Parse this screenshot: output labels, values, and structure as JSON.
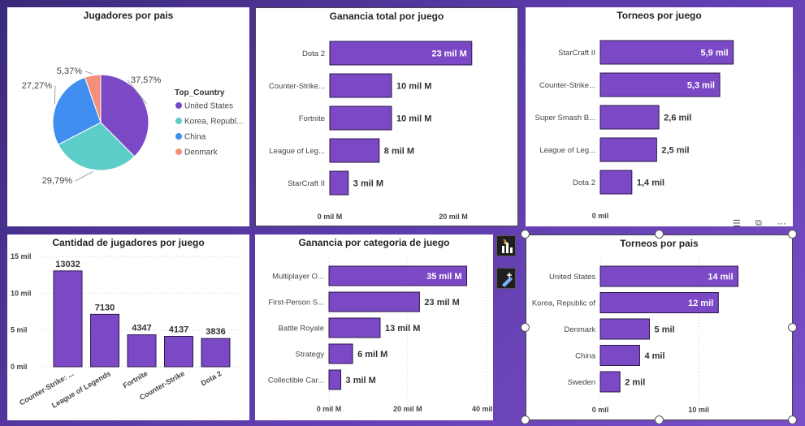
{
  "colors": {
    "bar": "#7b48c6",
    "bar_border": "#2b1a4a",
    "pie": [
      "#7b48c6",
      "#5ccdc7",
      "#3f8ef0",
      "#f3907b"
    ]
  },
  "panels": {
    "players_by_country": {
      "title": "Jugadores por pais",
      "legend_title": "Top_Country"
    },
    "earnings_by_game": {
      "title": "Ganancia total por juego"
    },
    "tournaments_by_game": {
      "title": "Torneos por juego"
    },
    "players_by_game": {
      "title": "Cantidad de jugadores por juego"
    },
    "earnings_by_category": {
      "title": "Ganancia por categoria de juego"
    },
    "tournaments_by_country": {
      "title": "Torneos por pais"
    }
  },
  "chart_data": [
    {
      "id": "players_by_country",
      "type": "pie",
      "title": "Jugadores por pais",
      "legend_title": "Top_Country",
      "labels": [
        "United States",
        "Korea, Republ...",
        "China",
        "Denmark"
      ],
      "values": [
        37.57,
        29.79,
        27.27,
        5.37
      ],
      "value_labels": [
        "37,57%",
        "29,79%",
        "27,27%",
        "5,37%"
      ],
      "legend": "right"
    },
    {
      "id": "earnings_by_game",
      "type": "bar",
      "orientation": "horizontal",
      "title": "Ganancia total por juego",
      "categories": [
        "Dota 2",
        "Counter-Strike...",
        "Fortnite",
        "League of Leg...",
        "StarCraft II"
      ],
      "values": [
        23,
        10,
        10,
        8,
        3
      ],
      "value_labels": [
        "23 mil M",
        "10 mil M",
        "10 mil M",
        "8 mil M",
        "3 mil M"
      ],
      "xlim": [
        0,
        30
      ],
      "xticks": [
        0,
        20
      ],
      "xtick_labels": [
        "0 mil M",
        "20 mil M"
      ]
    },
    {
      "id": "tournaments_by_game",
      "type": "bar",
      "orientation": "horizontal",
      "title": "Torneos por juego",
      "categories": [
        "StarCraft II",
        "Counter-Strike...",
        "Super Smash B...",
        "League of Leg...",
        "Dota 2"
      ],
      "values": [
        5.9,
        5.3,
        2.6,
        2.5,
        1.4
      ],
      "value_labels": [
        "5,9 mil",
        "5,3 mil",
        "2,6 mil",
        "2,5 mil",
        "1,4 mil"
      ],
      "xlim": [
        0,
        8
      ],
      "xticks": [
        0
      ],
      "xtick_labels": [
        "0 mil"
      ]
    },
    {
      "id": "players_by_game",
      "type": "bar",
      "orientation": "vertical",
      "title": "Cantidad de jugadores por juego",
      "categories": [
        "Counter-Strike: ...",
        "League of Legends",
        "Fortnite",
        "Counter-Strike",
        "Dota 2"
      ],
      "values": [
        13032,
        7130,
        4347,
        4137,
        3836
      ],
      "value_labels": [
        "13032",
        "7130",
        "4347",
        "4137",
        "3836"
      ],
      "ylim": [
        0,
        15000
      ],
      "yticks": [
        0,
        5000,
        10000,
        15000
      ],
      "ytick_labels": [
        "0 mil",
        "5 mil",
        "10 mil",
        "15 mil"
      ],
      "grid": true
    },
    {
      "id": "earnings_by_category",
      "type": "bar",
      "orientation": "horizontal",
      "title": "Ganancia por categoria de juego",
      "categories": [
        "Multiplayer O...",
        "First-Person S...",
        "Battle Royale",
        "Strategy",
        "Collectible Car..."
      ],
      "values": [
        35,
        23,
        13,
        6,
        3
      ],
      "value_labels": [
        "35 mil M",
        "23 mil M",
        "13 mil M",
        "6 mil M",
        "3 mil M"
      ],
      "xlim": [
        0,
        45
      ],
      "xticks": [
        0,
        20,
        40
      ],
      "xtick_labels": [
        "0 mil M",
        "20 mil M",
        "40 mil M"
      ],
      "grid": true
    },
    {
      "id": "tournaments_by_country",
      "type": "bar",
      "orientation": "horizontal",
      "title": "Torneos por pais",
      "categories": [
        "United States",
        "Korea, Republic of",
        "Denmark",
        "China",
        "Sweden"
      ],
      "values": [
        14,
        12,
        5,
        4,
        2
      ],
      "value_labels": [
        "14 mil",
        "12 mil",
        "5 mil",
        "4 mil",
        "2 mil"
      ],
      "xlim": [
        0,
        18
      ],
      "xticks": [
        0,
        10
      ],
      "xtick_labels": [
        "0 mil",
        "10 mil"
      ],
      "grid": true
    }
  ]
}
